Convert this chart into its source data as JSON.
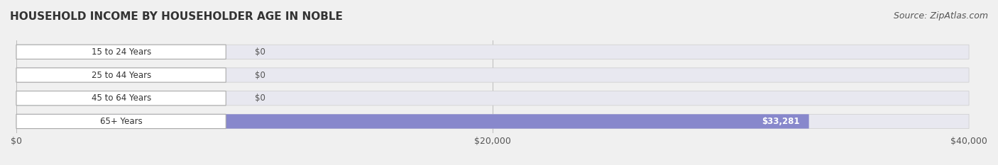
{
  "title": "HOUSEHOLD INCOME BY HOUSEHOLDER AGE IN NOBLE",
  "source": "Source: ZipAtlas.com",
  "categories": [
    "15 to 24 Years",
    "25 to 44 Years",
    "45 to 64 Years",
    "65+ Years"
  ],
  "values": [
    0,
    0,
    0,
    33281
  ],
  "bar_colors": [
    "#7ec8d8",
    "#c4a0c8",
    "#5bbcb0",
    "#8888cc"
  ],
  "label_colors": [
    "#7ec8d8",
    "#c4a0c8",
    "#5bbcb0",
    "#8888cc"
  ],
  "bg_color": "#f0f0f0",
  "bar_bg_color": "#e8e8f0",
  "xlim": [
    0,
    40000
  ],
  "xticks": [
    0,
    20000,
    40000
  ],
  "xtick_labels": [
    "$0",
    "$20,000",
    "$40,000"
  ],
  "value_labels": [
    "$0",
    "$0",
    "$0",
    "$33,281"
  ],
  "title_fontsize": 11,
  "source_fontsize": 9
}
